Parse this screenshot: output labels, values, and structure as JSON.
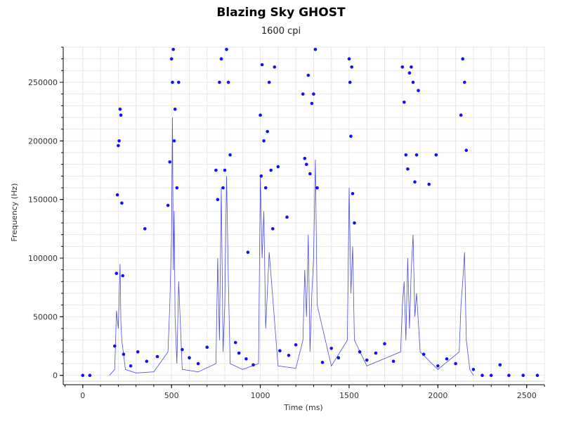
{
  "chart_data": {
    "type": "scatter",
    "title": "Blazing Sky GHOST",
    "subtitle": "1600 cpi",
    "xlabel": "Time (ms)",
    "ylabel": "Frequency (Hz)",
    "xlim": [
      -110,
      2600
    ],
    "ylim": [
      -5000,
      280000
    ],
    "xticks": [
      0,
      500,
      1000,
      1500,
      2000,
      2500
    ],
    "yticks": [
      0,
      50000,
      100000,
      150000,
      200000,
      250000
    ],
    "grid": true,
    "colors": {
      "points": "#1010ff",
      "line": "#0000cc",
      "axis": "#000000",
      "grid": "#e6e6e6"
    },
    "series": [
      {
        "kind": "points",
        "x": [
          0,
          40,
          190,
          195,
          200,
          205,
          210,
          215,
          220,
          225,
          350,
          480,
          490,
          500,
          505,
          510,
          515,
          520,
          530,
          540,
          750,
          760,
          770,
          780,
          790,
          800,
          810,
          820,
          830,
          930,
          1000,
          1005,
          1010,
          1020,
          1030,
          1040,
          1050,
          1060,
          1070,
          1080,
          1100,
          1150,
          1240,
          1250,
          1260,
          1270,
          1280,
          1290,
          1300,
          1310,
          1320,
          1500,
          1505,
          1510,
          1515,
          1520,
          1530,
          1800,
          1810,
          1820,
          1830,
          1840,
          1850,
          1860,
          1870,
          1880,
          1890,
          1950,
          1990,
          2130,
          2140,
          2150,
          2160,
          2250,
          2300,
          2350,
          2400,
          2480,
          2560,
          180,
          230,
          270,
          310,
          360,
          420,
          560,
          600,
          650,
          700,
          860,
          880,
          920,
          960,
          1110,
          1160,
          1200,
          1350,
          1400,
          1440,
          1560,
          1600,
          1650,
          1700,
          1750,
          1920,
          2000,
          2050,
          2100,
          2200
        ],
        "y": [
          0,
          0,
          87000,
          154000,
          196000,
          200000,
          227000,
          222000,
          147000,
          85000,
          125000,
          145000,
          182000,
          270000,
          250000,
          278000,
          200000,
          227000,
          160000,
          250000,
          175000,
          150000,
          250000,
          270000,
          160000,
          175000,
          278000,
          250000,
          188000,
          105000,
          222000,
          170000,
          265000,
          200000,
          160000,
          208000,
          250000,
          175000,
          125000,
          263000,
          178000,
          135000,
          240000,
          185000,
          180000,
          256000,
          172000,
          232000,
          240000,
          278000,
          160000,
          270000,
          250000,
          204000,
          263000,
          155000,
          130000,
          263000,
          233000,
          188000,
          176000,
          258000,
          263000,
          250000,
          165000,
          188000,
          243000,
          163000,
          188000,
          222000,
          270000,
          250000,
          192000,
          0,
          0,
          9000,
          0,
          0,
          0,
          25000,
          18000,
          8000,
          20000,
          12000,
          16000,
          22000,
          15000,
          10000,
          24000,
          28000,
          19000,
          14000,
          9000,
          21000,
          17000,
          26000,
          11000,
          23000,
          15000,
          20000,
          13000,
          19000,
          27000,
          12000,
          18000,
          8000,
          14000,
          10000,
          5000
        ]
      },
      {
        "kind": "line",
        "x": [
          150,
          180,
          190,
          200,
          210,
          215,
          220,
          240,
          300,
          400,
          480,
          490,
          500,
          505,
          510,
          515,
          520,
          530,
          540,
          560,
          650,
          750,
          760,
          770,
          780,
          790,
          800,
          810,
          820,
          830,
          900,
          990,
          1000,
          1010,
          1020,
          1030,
          1050,
          1100,
          1200,
          1240,
          1250,
          1260,
          1270,
          1280,
          1290,
          1300,
          1310,
          1320,
          1400,
          1490,
          1500,
          1510,
          1520,
          1530,
          1600,
          1790,
          1800,
          1810,
          1820,
          1830,
          1840,
          1850,
          1860,
          1870,
          1880,
          1900,
          2000,
          2120,
          2130,
          2140,
          2150,
          2160,
          2180,
          2200
        ],
        "y": [
          0,
          5000,
          55000,
          40000,
          95000,
          45000,
          30000,
          5000,
          2000,
          3000,
          20000,
          60000,
          120000,
          220000,
          90000,
          140000,
          50000,
          10000,
          80000,
          5000,
          3000,
          10000,
          100000,
          30000,
          160000,
          20000,
          60000,
          170000,
          80000,
          10000,
          5000,
          10000,
          170000,
          100000,
          140000,
          40000,
          105000,
          8000,
          6000,
          30000,
          90000,
          50000,
          120000,
          20000,
          70000,
          100000,
          184000,
          60000,
          8000,
          30000,
          160000,
          70000,
          110000,
          30000,
          8000,
          20000,
          60000,
          80000,
          30000,
          100000,
          40000,
          90000,
          120000,
          50000,
          70000,
          20000,
          5000,
          20000,
          60000,
          80000,
          105000,
          30000,
          5000,
          0
        ]
      }
    ]
  }
}
